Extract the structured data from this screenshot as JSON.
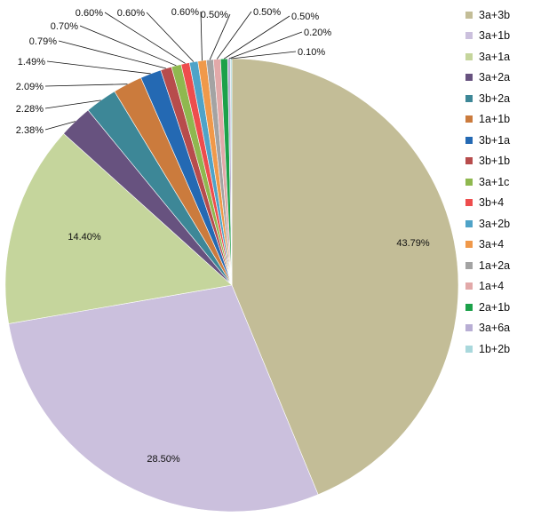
{
  "chart_data": {
    "type": "pie",
    "title": "",
    "legend_position": "right",
    "slices": [
      {
        "name": "3a+3b",
        "value": 43.79,
        "label": "43.79%",
        "color": "#c3bd97"
      },
      {
        "name": "3a+1b",
        "value": 28.5,
        "label": "28.50%",
        "color": "#cbc0dd"
      },
      {
        "name": "3a+1a",
        "value": 14.4,
        "label": "14.40%",
        "color": "#c5d59c"
      },
      {
        "name": "3a+2a",
        "value": 2.38,
        "label": "2.38%",
        "color": "#67527f"
      },
      {
        "name": "3b+2a",
        "value": 2.28,
        "label": "2.28%",
        "color": "#3d8797"
      },
      {
        "name": "1a+1b",
        "value": 2.09,
        "label": "2.09%",
        "color": "#cb7b3d"
      },
      {
        "name": "3b+1a",
        "value": 1.49,
        "label": "1.49%",
        "color": "#2469b3"
      },
      {
        "name": "3b+1b",
        "value": 0.79,
        "label": "0.79%",
        "color": "#b74c4c"
      },
      {
        "name": "3a+1c",
        "value": 0.7,
        "label": "0.70%",
        "color": "#8fb84f"
      },
      {
        "name": "3b+4",
        "value": 0.6,
        "label": "0.60%",
        "color": "#ee4d4d"
      },
      {
        "name": "3a+2b",
        "value": 0.6,
        "label": "0.60%",
        "color": "#4fa3c8"
      },
      {
        "name": "3a+4",
        "value": 0.6,
        "label": "0.60%",
        "color": "#f0994a"
      },
      {
        "name": "1a+2a",
        "value": 0.5,
        "label": "0.50%",
        "color": "#a3a3a3"
      },
      {
        "name": "1a+4",
        "value": 0.5,
        "label": "0.50%",
        "color": "#e2a9a9"
      },
      {
        "name": "2a+1b",
        "value": 0.5,
        "label": "0.50%",
        "color": "#1ca14a"
      },
      {
        "name": "3a+6a",
        "value": 0.2,
        "label": "0.20%",
        "color": "#b8aed4"
      },
      {
        "name": "1b+2b",
        "value": 0.1,
        "label": "0.10%",
        "color": "#a9d8dc"
      }
    ]
  }
}
